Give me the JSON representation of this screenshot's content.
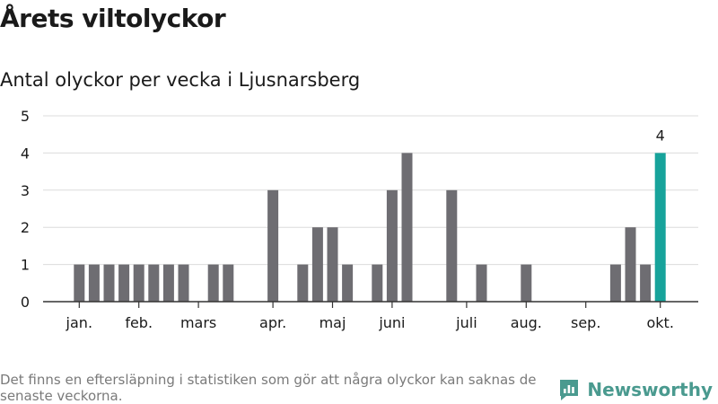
{
  "title": "Årets viltolyckor",
  "subtitle": "Antal olyckor per vecka i Ljusnarsberg",
  "footnote": "Det finns en eftersläpning i statistiken som gör att några olyckor kan saknas de senaste veckorna.",
  "brand": {
    "name": "Newsworthy",
    "icon": "bar-chart-speech-bubble-icon"
  },
  "colors": {
    "bar": "#6e6d72",
    "highlight": "#17a39b",
    "grid": "#dcdcdc",
    "axis": "#333333",
    "brand": "#4a9a8f"
  },
  "chart_data": {
    "type": "bar",
    "title": "Antal olyckor per vecka i Ljusnarsberg",
    "xlabel": "",
    "ylabel": "",
    "ylim": [
      0,
      5
    ],
    "yticks": [
      0,
      1,
      2,
      3,
      4,
      5
    ],
    "grid": true,
    "x_label_weeks": [
      2,
      6,
      10,
      15,
      19,
      23,
      28,
      32,
      36,
      41
    ],
    "x_labels": [
      "jan.",
      "feb.",
      "mars",
      "apr.",
      "maj",
      "juni",
      "juli",
      "aug.",
      "sep.",
      "okt."
    ],
    "weeks": [
      1,
      2,
      3,
      4,
      5,
      6,
      7,
      8,
      9,
      10,
      11,
      12,
      13,
      14,
      15,
      16,
      17,
      18,
      19,
      20,
      21,
      22,
      23,
      24,
      25,
      26,
      27,
      28,
      29,
      30,
      31,
      32,
      33,
      34,
      35,
      36,
      37,
      38,
      39,
      40,
      41
    ],
    "values": [
      0,
      1,
      1,
      1,
      1,
      1,
      1,
      1,
      1,
      0,
      1,
      1,
      0,
      0,
      3,
      0,
      1,
      2,
      2,
      1,
      0,
      1,
      3,
      4,
      0,
      0,
      3,
      0,
      1,
      0,
      0,
      1,
      0,
      0,
      0,
      0,
      0,
      1,
      2,
      1,
      4
    ],
    "highlight_week": 41,
    "highlight_label": "4"
  }
}
